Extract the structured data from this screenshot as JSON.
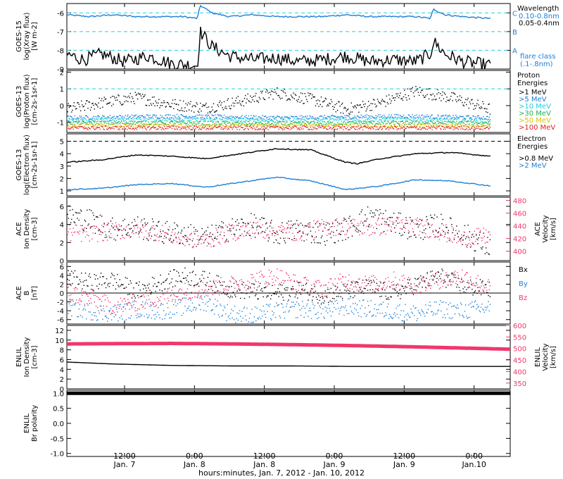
{
  "colors": {
    "black": "#000000",
    "blue": "#1e7fd6",
    "cyan": "#1ecfe0",
    "pink": "#f0386a",
    "green": "#22b14c",
    "yellow": "#e0c000",
    "orange": "#f08020",
    "red": "#e02020"
  },
  "x_axis": {
    "title": "hours:minutes, Jan.  7, 2012 - Jan. 10, 2012",
    "ticks": [
      {
        "time": "12:00",
        "date": "Jan. 7",
        "h": 12
      },
      {
        "time": "0:00",
        "date": "Jan. 8",
        "h": 24
      },
      {
        "time": "12:00",
        "date": "Jan. 8",
        "h": 36
      },
      {
        "time": "0:00",
        "date": "Jan. 9",
        "h": 48
      },
      {
        "time": "12:00",
        "date": "Jan. 9",
        "h": 60
      },
      {
        "time": "0:00",
        "date": "Jan.10",
        "h": 72
      }
    ],
    "start_h": 2.1,
    "end_h": 78.2,
    "data_end_h": 74.8
  },
  "chart_data": [
    {
      "type": "line",
      "panel": "goes15-xray",
      "ylabel": [
        "GOES-15",
        "log(Xray flux)",
        "[W m-2]"
      ],
      "ylim": [
        -9,
        -5.5
      ],
      "yticks": [
        "-9",
        "-8",
        "-7",
        "-6"
      ],
      "ytick_values": [
        -9,
        -8,
        -7,
        -6
      ],
      "legend_title": "Wavelength",
      "legend": [
        {
          "label": "0.10-0.8nm",
          "color": "blue"
        },
        {
          "label": "0.05-0.4nm",
          "color": "black"
        }
      ],
      "flare_levels": [
        {
          "label": "C",
          "value": -6
        },
        {
          "label": "B",
          "value": -7
        },
        {
          "label": "A",
          "value": -8
        }
      ],
      "flare_caption": [
        "flare class",
        "(.1-.8nm)"
      ],
      "series": [
        {
          "name": "0.10-0.8nm",
          "color": "blue",
          "x": [
            2,
            6,
            10,
            14,
            18,
            22,
            24.5,
            25,
            27,
            30,
            34,
            38,
            42,
            46,
            50,
            54,
            58,
            62,
            64.5,
            65,
            67,
            70,
            74.8
          ],
          "y": [
            -6.1,
            -6.2,
            -6.1,
            -6.2,
            -6.2,
            -6.2,
            -6.3,
            -5.6,
            -6.0,
            -6.2,
            -6.1,
            -6.2,
            -6.2,
            -6.2,
            -6.1,
            -6.2,
            -6.2,
            -6.2,
            -6.3,
            -5.8,
            -6.1,
            -6.2,
            -6.3
          ]
        },
        {
          "name": "0.05-0.4nm",
          "color": "black",
          "x": [
            2,
            5,
            8,
            12,
            16,
            20,
            24.5,
            25,
            27,
            30,
            34,
            38,
            42,
            46,
            50,
            54,
            58,
            62,
            64.5,
            65,
            67,
            70,
            74.8
          ],
          "y": [
            -8.2,
            -8.5,
            -8.2,
            -8.6,
            -8.3,
            -8.7,
            -8.8,
            -7.0,
            -7.8,
            -8.3,
            -8.5,
            -8.4,
            -8.6,
            -8.5,
            -8.3,
            -8.6,
            -8.5,
            -8.6,
            -8.2,
            -7.5,
            -8.2,
            -8.6,
            -8.8
          ]
        }
      ]
    },
    {
      "type": "scatter",
      "panel": "goes13-proton",
      "ylabel": [
        "GOES-13",
        "log(Proton flux)",
        "[cm-2s-1sr-1]"
      ],
      "ylim": [
        -1.6,
        2.1
      ],
      "yticks": [
        "-1",
        "0",
        "1",
        "2"
      ],
      "ytick_values": [
        -1,
        0,
        1,
        2
      ],
      "legend_title": [
        "Proton",
        "Energies"
      ],
      "legend": [
        {
          "label": ">1 MeV",
          "color": "black"
        },
        {
          "label": ">5 MeV",
          "color": "blue"
        },
        {
          "label": ">10 MeV",
          "color": "cyan"
        },
        {
          "label": ">30 MeV",
          "color": "green"
        },
        {
          "label": ">50 MeV",
          "color": "yellow"
        },
        {
          "label": ">100 MeV",
          "color": "red"
        }
      ],
      "reference_line": 1,
      "series": [
        {
          "name": ">1 MeV",
          "color": "black",
          "x": [
            2,
            8,
            14,
            20,
            26,
            32,
            38,
            44,
            50,
            56,
            62,
            68,
            74.8
          ],
          "y": [
            -0.2,
            0.2,
            0.5,
            0.1,
            -0.1,
            0.3,
            0.8,
            0.4,
            -0.2,
            0.2,
            0.9,
            0.5,
            -0.2
          ]
        },
        {
          "name": ">5 MeV",
          "color": "blue",
          "x": [
            2,
            20,
            40,
            60,
            74.8
          ],
          "y": [
            -0.7,
            -0.6,
            -0.7,
            -0.6,
            -0.7
          ]
        },
        {
          "name": ">10 MeV",
          "color": "cyan",
          "x": [
            2,
            20,
            40,
            60,
            74.8
          ],
          "y": [
            -0.85,
            -0.8,
            -0.85,
            -0.8,
            -0.85
          ]
        },
        {
          "name": ">30 MeV",
          "color": "green",
          "x": [
            2,
            20,
            40,
            60,
            74.8
          ],
          "y": [
            -1.0,
            -1.0,
            -1.05,
            -1.0,
            -1.0
          ]
        },
        {
          "name": ">50 MeV",
          "color": "yellow",
          "x": [
            2,
            20,
            40,
            60,
            74.8
          ],
          "y": [
            -1.15,
            -1.15,
            -1.15,
            -1.15,
            -1.15
          ]
        },
        {
          "name": ">100 MeV",
          "color": "red",
          "x": [
            2,
            20,
            40,
            60,
            74.8
          ],
          "y": [
            -1.3,
            -1.3,
            -1.3,
            -1.3,
            -1.3
          ]
        }
      ]
    },
    {
      "type": "line",
      "panel": "goes13-electron",
      "ylabel": [
        "GOES-13",
        "log(Electron flux)",
        "[cm-2s-1sr-1]"
      ],
      "ylim": [
        0.6,
        5.6
      ],
      "yticks": [
        "1",
        "2",
        "3",
        "4",
        "5"
      ],
      "ytick_values": [
        1,
        2,
        3,
        4,
        5
      ],
      "legend_title": [
        "Electron",
        "Energies"
      ],
      "legend": [
        {
          "label": ">0.8 MeV",
          "color": "black"
        },
        {
          "label": ">2 MeV",
          "color": "blue"
        }
      ],
      "reference_line": 5,
      "series": [
        {
          "name": ">0.8 MeV",
          "color": "black",
          "x": [
            2,
            8,
            14,
            20,
            26,
            32,
            38,
            44,
            50,
            52,
            56,
            62,
            68,
            74.8
          ],
          "y": [
            3.3,
            3.5,
            3.9,
            3.8,
            3.6,
            4.0,
            4.4,
            4.3,
            3.3,
            3.2,
            3.6,
            4.0,
            4.1,
            3.8
          ]
        },
        {
          "name": ">2 MeV",
          "color": "blue",
          "x": [
            2,
            8,
            14,
            20,
            26,
            32,
            38,
            44,
            50,
            56,
            62,
            68,
            74.8
          ],
          "y": [
            1.1,
            1.2,
            1.5,
            1.6,
            1.3,
            1.7,
            2.1,
            1.8,
            1.1,
            1.4,
            1.9,
            1.8,
            1.4
          ]
        }
      ]
    },
    {
      "type": "scatter",
      "panel": "ace-density-velocity",
      "ylabel": [
        "ACE",
        "Ion Density",
        "[cm-3]"
      ],
      "ylim": [
        0,
        7
      ],
      "yticks": [
        "0",
        "2",
        "4",
        "6"
      ],
      "ytick_values": [
        0,
        2,
        4,
        6
      ],
      "y2label": [
        "ACE",
        "Velocity",
        "[km/s]"
      ],
      "y2lim": [
        385,
        485
      ],
      "y2ticks": [
        "400",
        "420",
        "440",
        "460",
        "480"
      ],
      "y2tick_values": [
        400,
        420,
        440,
        460,
        480
      ],
      "series": [
        {
          "name": "Ion Density",
          "color": "black",
          "axis": "left",
          "x": [
            2,
            6,
            10,
            14,
            18,
            22,
            26,
            30,
            34,
            38,
            42,
            46,
            50,
            54,
            58,
            62,
            66,
            70,
            74.8
          ],
          "y": [
            5.0,
            4.5,
            3.5,
            3.8,
            3.2,
            3.0,
            2.5,
            3.5,
            4.0,
            3.0,
            3.5,
            3.0,
            3.6,
            5.0,
            4.2,
            3.5,
            4.0,
            3.0,
            1.5
          ]
        },
        {
          "name": "Velocity",
          "color": "pink",
          "axis": "right",
          "x": [
            2,
            6,
            10,
            14,
            18,
            22,
            26,
            30,
            34,
            38,
            42,
            46,
            50,
            54,
            58,
            62,
            66,
            70,
            74.8
          ],
          "y": [
            430,
            428,
            432,
            435,
            430,
            420,
            418,
            430,
            435,
            432,
            430,
            438,
            440,
            437,
            442,
            440,
            432,
            420,
            425
          ]
        }
      ]
    },
    {
      "type": "scatter",
      "panel": "ace-b",
      "ylabel": [
        "ACE",
        "B",
        "[nT]"
      ],
      "ylim": [
        -7,
        7
      ],
      "yticks": [
        "-6",
        "-4",
        "-2",
        "0",
        "2",
        "4",
        "6"
      ],
      "ytick_values": [
        -6,
        -4,
        -2,
        0,
        2,
        4,
        6
      ],
      "legend": [
        {
          "label": "Bx",
          "color": "black"
        },
        {
          "label": "By",
          "color": "blue"
        },
        {
          "label": "Bz",
          "color": "pink"
        }
      ],
      "series": [
        {
          "name": "Bx",
          "color": "black",
          "x": [
            2,
            6,
            10,
            14,
            18,
            22,
            26,
            30,
            34,
            38,
            42,
            46,
            50,
            54,
            58,
            62,
            66,
            70,
            74.8
          ],
          "y": [
            3.5,
            2.5,
            3.0,
            0.5,
            2.5,
            4.0,
            3.0,
            1.0,
            0.5,
            0.0,
            1.0,
            -0.5,
            0.5,
            1.5,
            0.0,
            2.0,
            4.0,
            1.5,
            1.0
          ]
        },
        {
          "name": "By",
          "color": "blue",
          "x": [
            2,
            6,
            10,
            14,
            18,
            22,
            26,
            30,
            34,
            38,
            42,
            46,
            50,
            54,
            58,
            62,
            66,
            70,
            74.8
          ],
          "y": [
            -3.0,
            -4.0,
            -4.5,
            -3.5,
            -4.0,
            -3.0,
            -2.0,
            -4.5,
            -5.0,
            -4.0,
            -3.5,
            -4.0,
            -3.0,
            -3.5,
            -4.0,
            -4.5,
            -3.5,
            -4.0,
            -3.0
          ]
        },
        {
          "name": "Bz",
          "color": "pink",
          "x": [
            2,
            6,
            10,
            14,
            18,
            22,
            26,
            30,
            34,
            38,
            42,
            46,
            50,
            54,
            58,
            62,
            66,
            70,
            74.8
          ],
          "y": [
            0.0,
            -1.0,
            -3.0,
            -2.0,
            -1.0,
            0.5,
            1.0,
            2.0,
            3.0,
            4.0,
            2.0,
            1.0,
            3.0,
            2.0,
            3.0,
            2.0,
            3.0,
            4.0,
            1.0
          ]
        }
      ],
      "reference_line": 0
    },
    {
      "type": "line",
      "panel": "enlil-density-velocity",
      "ylabel": [
        "ENLIL",
        "Ion Density",
        "[cm-3]"
      ],
      "ylim": [
        0,
        13
      ],
      "yticks": [
        "0",
        "2",
        "4",
        "6",
        "8",
        "10",
        "12"
      ],
      "ytick_values": [
        0,
        2,
        4,
        6,
        8,
        10,
        12
      ],
      "y2label": [
        "ENLIL",
        "Velocity",
        "[km/s]"
      ],
      "y2lim": [
        325,
        600
      ],
      "y2ticks": [
        "350",
        "400",
        "450",
        "500",
        "550",
        "600"
      ],
      "y2tick_values": [
        350,
        400,
        450,
        500,
        550,
        600
      ],
      "series": [
        {
          "name": "Ion Density",
          "color": "black",
          "axis": "left",
          "x": [
            2,
            10,
            20,
            30,
            40,
            50,
            60,
            70,
            78.2
          ],
          "y": [
            5.5,
            5.1,
            4.8,
            4.7,
            4.7,
            4.6,
            4.6,
            4.6,
            4.6
          ]
        },
        {
          "name": "Velocity",
          "color": "pink",
          "axis": "right",
          "x": [
            2,
            10,
            20,
            30,
            40,
            50,
            60,
            70,
            78.2
          ],
          "y": [
            520,
            521,
            522,
            520,
            517,
            513,
            508,
            502,
            497
          ]
        }
      ]
    },
    {
      "type": "line",
      "panel": "enlil-polarity",
      "ylabel": [
        "ENLIL",
        "Br polarity"
      ],
      "ylim": [
        -1.1,
        1.1
      ],
      "yticks": [
        "-1.0",
        "-0.5",
        "0.0",
        "0.5",
        "1.0"
      ],
      "ytick_values": [
        -1,
        -0.5,
        0,
        0.5,
        1
      ],
      "series": [
        {
          "name": "Br polarity",
          "color": "black",
          "x": [
            2.1,
            78.2
          ],
          "y": [
            1,
            1
          ]
        }
      ]
    }
  ]
}
